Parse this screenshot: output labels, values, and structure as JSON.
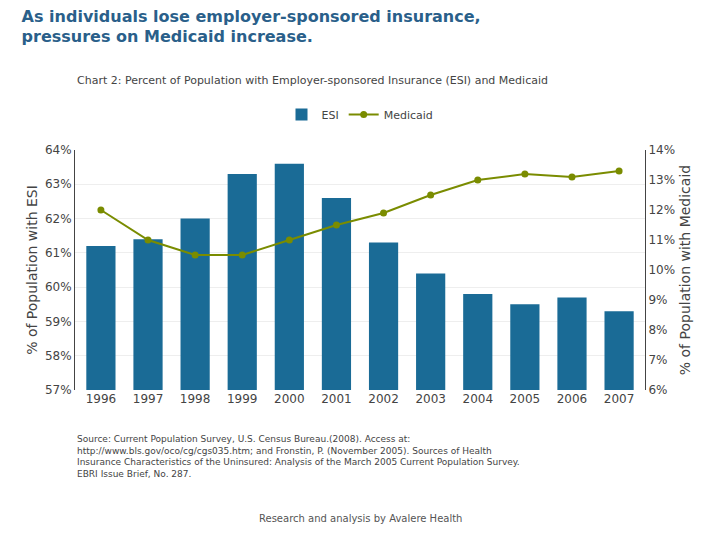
{
  "chart_data": {
    "type": "bar",
    "title": "As individuals lose employer-sponsored insurance,\npressures on Medicaid increase.",
    "subtitle": "Chart 2: Percent of Population with Employer-sponsored Insurance (ESI) and Medicaid",
    "categories": [
      "1996",
      "1997",
      "1998",
      "1999",
      "2000",
      "2001",
      "2002",
      "2003",
      "2004",
      "2005",
      "2006",
      "2007"
    ],
    "series": [
      {
        "name": "ESI",
        "type": "bar",
        "color": "#1a6b96",
        "values": [
          61.2,
          61.4,
          62.0,
          63.3,
          63.6,
          62.6,
          61.3,
          60.4,
          59.8,
          59.5,
          59.7,
          59.3
        ]
      },
      {
        "name": "Medicaid",
        "type": "line",
        "color": "#7a8c00",
        "marker": "circle",
        "axis": "y2",
        "values": [
          12.0,
          11.0,
          10.5,
          10.5,
          11.0,
          11.5,
          11.9,
          12.5,
          13.0,
          13.2,
          13.1,
          13.3
        ]
      }
    ],
    "ylabel": "% of Population with ESI",
    "y2label": "% of Population with Medicaid",
    "ylim": [
      57,
      64
    ],
    "yticks": [
      {
        "value": 57,
        "label": "57%"
      },
      {
        "value": 58,
        "label": "58%"
      },
      {
        "value": 59,
        "label": "59%"
      },
      {
        "value": 60,
        "label": "60%"
      },
      {
        "value": 61,
        "label": "61%"
      },
      {
        "value": 62,
        "label": "62%"
      },
      {
        "value": 63,
        "label": "63%"
      },
      {
        "value": 64,
        "label": "64%"
      }
    ],
    "y2lim": [
      6,
      14
    ],
    "y2ticks": [
      {
        "value": 6,
        "label": "6%"
      },
      {
        "value": 7,
        "label": "7%"
      },
      {
        "value": 8,
        "label": "8%"
      },
      {
        "value": 9,
        "label": "9%"
      },
      {
        "value": 10,
        "label": "10%"
      },
      {
        "value": 11,
        "label": "11%"
      },
      {
        "value": 12,
        "label": "12%"
      },
      {
        "value": 13,
        "label": "13%"
      },
      {
        "value": 14,
        "label": "14%"
      }
    ],
    "grid": true,
    "legend": "upper center",
    "annotations": [
      "Source: Current Population Survey, U.S. Census Bureau.(2008). Access at:\nhttp://www.bls.gov/oco/cg/cgs035.htm; and Fronstin, P. (November 2005). Sources of Health\nInsurance Characteristics of the Uninsured: Analysis of the March 2005 Current Population Survey.\nEBRI Issue Brief, No. 287.",
      "Research and analysis by Avalere Health"
    ]
  }
}
